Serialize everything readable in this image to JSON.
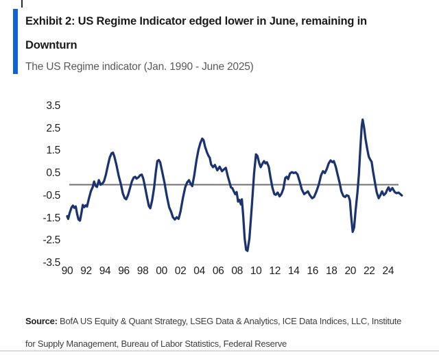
{
  "header": {
    "title_line1": "Exhibit 2: US Regime Indicator edged lower in June, remaining in",
    "title_line2": "Downturn",
    "subtitle": "The US Regime indicator (Jan. 1990 - June 2025)"
  },
  "source": {
    "label": "Source:",
    "line1": "BofA US Equity & Quant Strategy, LSEG Data & Analytics, ICE Data Indices, LLC, Institute",
    "line2": "for Supply Management, Bureau of Labor Statistics, Federal Reserve"
  },
  "colors": {
    "accent_bar": "#1164cf",
    "line": "#1b3470",
    "zero_line": "#6f6f6f",
    "tick_text": "#1c1c1c"
  },
  "chart_data": {
    "type": "line",
    "title": "Exhibit 2: US Regime Indicator edged lower in June, remaining in Downturn",
    "subtitle": "The US Regime indicator (Jan. 1990 - June 2025)",
    "series_name": "US Regime Indicator",
    "xlabel": "",
    "ylabel": "",
    "x_range": [
      1990.0,
      2025.45
    ],
    "ylim": [
      -3.5,
      3.5
    ],
    "grid": "none",
    "legend": "none",
    "zero_line": true,
    "y_ticks": [
      3.5,
      2.5,
      1.5,
      0.5,
      -0.5,
      -1.5,
      -2.5,
      -3.5
    ],
    "y_tick_labels": [
      "3.5",
      "2.5",
      "1.5",
      "0.5",
      "-0.5",
      "-1.5",
      "-2.5",
      "-3.5"
    ],
    "x_ticks": [
      1990,
      1992,
      1994,
      1996,
      1998,
      2000,
      2002,
      2004,
      2006,
      2008,
      2010,
      2012,
      2014,
      2016,
      2018,
      2020,
      2022,
      2024
    ],
    "x_tick_labels": [
      "90",
      "92",
      "94",
      "96",
      "98",
      "00",
      "02",
      "04",
      "06",
      "08",
      "10",
      "12",
      "14",
      "16",
      "18",
      "20",
      "22",
      "24"
    ],
    "points": [
      [
        1990.0,
        -1.4
      ],
      [
        1990.1,
        -1.52
      ],
      [
        1990.25,
        -1.28
      ],
      [
        1990.45,
        -1.02
      ],
      [
        1990.6,
        -0.93
      ],
      [
        1990.75,
        -1.03
      ],
      [
        1990.9,
        -0.97
      ],
      [
        1991.05,
        -1.3
      ],
      [
        1991.2,
        -1.55
      ],
      [
        1991.35,
        -1.6
      ],
      [
        1991.5,
        -1.28
      ],
      [
        1991.65,
        -0.9
      ],
      [
        1991.8,
        -1.0
      ],
      [
        1991.95,
        -0.92
      ],
      [
        1992.1,
        -0.97
      ],
      [
        1992.3,
        -0.62
      ],
      [
        1992.5,
        -0.3
      ],
      [
        1992.7,
        -0.1
      ],
      [
        1992.85,
        0.14
      ],
      [
        1993.0,
        -0.05
      ],
      [
        1993.15,
        -0.1
      ],
      [
        1993.35,
        0.2
      ],
      [
        1993.55,
        0.0
      ],
      [
        1993.75,
        0.06
      ],
      [
        1993.9,
        0.16
      ],
      [
        1994.1,
        0.45
      ],
      [
        1994.3,
        0.85
      ],
      [
        1994.5,
        1.2
      ],
      [
        1994.7,
        1.4
      ],
      [
        1994.85,
        1.43
      ],
      [
        1995.0,
        1.25
      ],
      [
        1995.2,
        0.9
      ],
      [
        1995.45,
        0.4
      ],
      [
        1995.7,
        0.0
      ],
      [
        1995.9,
        -0.4
      ],
      [
        1996.1,
        -0.6
      ],
      [
        1996.25,
        -0.65
      ],
      [
        1996.45,
        -0.45
      ],
      [
        1996.65,
        -0.15
      ],
      [
        1996.85,
        0.15
      ],
      [
        1997.05,
        0.32
      ],
      [
        1997.2,
        0.35
      ],
      [
        1997.35,
        0.27
      ],
      [
        1997.55,
        0.33
      ],
      [
        1997.75,
        0.43
      ],
      [
        1997.9,
        0.45
      ],
      [
        1998.05,
        0.28
      ],
      [
        1998.2,
        0.0
      ],
      [
        1998.45,
        -0.55
      ],
      [
        1998.65,
        -0.95
      ],
      [
        1998.8,
        -1.05
      ],
      [
        1999.0,
        -0.7
      ],
      [
        1999.2,
        -0.15
      ],
      [
        1999.4,
        0.6
      ],
      [
        1999.55,
        1.05
      ],
      [
        1999.7,
        1.1
      ],
      [
        1999.85,
        1.0
      ],
      [
        2000.05,
        0.6
      ],
      [
        2000.3,
        0.1
      ],
      [
        2000.55,
        -0.5
      ],
      [
        2000.8,
        -1.0
      ],
      [
        2001.0,
        -1.2
      ],
      [
        2001.2,
        -1.45
      ],
      [
        2001.4,
        -1.55
      ],
      [
        2001.6,
        -1.45
      ],
      [
        2001.8,
        -1.52
      ],
      [
        2002.0,
        -1.2
      ],
      [
        2002.25,
        -0.6
      ],
      [
        2002.5,
        -0.12
      ],
      [
        2002.7,
        0.1
      ],
      [
        2002.9,
        0.2
      ],
      [
        2003.1,
        0.02
      ],
      [
        2003.25,
        -0.06
      ],
      [
        2003.45,
        0.4
      ],
      [
        2003.7,
        1.1
      ],
      [
        2003.9,
        1.55
      ],
      [
        2004.1,
        1.85
      ],
      [
        2004.3,
        2.05
      ],
      [
        2004.45,
        1.98
      ],
      [
        2004.6,
        1.7
      ],
      [
        2004.8,
        1.45
      ],
      [
        2004.95,
        1.3
      ],
      [
        2005.1,
        1.2
      ],
      [
        2005.25,
        0.9
      ],
      [
        2005.45,
        0.78
      ],
      [
        2005.65,
        0.88
      ],
      [
        2005.9,
        0.64
      ],
      [
        2006.15,
        0.8
      ],
      [
        2006.4,
        0.6
      ],
      [
        2006.6,
        0.68
      ],
      [
        2006.8,
        0.75
      ],
      [
        2007.0,
        0.4
      ],
      [
        2007.2,
        0.1
      ],
      [
        2007.35,
        -0.12
      ],
      [
        2007.5,
        -0.16
      ],
      [
        2007.65,
        -0.3
      ],
      [
        2007.8,
        -0.42
      ],
      [
        2007.95,
        -0.33
      ],
      [
        2008.1,
        -0.75
      ],
      [
        2008.25,
        -0.68
      ],
      [
        2008.4,
        -0.88
      ],
      [
        2008.5,
        -0.65
      ],
      [
        2008.65,
        -1.4
      ],
      [
        2008.8,
        -2.4
      ],
      [
        2008.95,
        -2.9
      ],
      [
        2009.1,
        -2.95
      ],
      [
        2009.3,
        -2.4
      ],
      [
        2009.5,
        -1.3
      ],
      [
        2009.65,
        -0.4
      ],
      [
        2009.8,
        0.5
      ],
      [
        2010.0,
        1.35
      ],
      [
        2010.15,
        1.28
      ],
      [
        2010.35,
        0.95
      ],
      [
        2010.5,
        0.78
      ],
      [
        2010.7,
        0.95
      ],
      [
        2010.85,
        1.05
      ],
      [
        2011.0,
        0.95
      ],
      [
        2011.15,
        1.0
      ],
      [
        2011.35,
        0.8
      ],
      [
        2011.55,
        0.3
      ],
      [
        2011.75,
        -0.15
      ],
      [
        2011.95,
        -0.42
      ],
      [
        2012.1,
        -0.45
      ],
      [
        2012.3,
        -0.35
      ],
      [
        2012.5,
        -0.52
      ],
      [
        2012.7,
        -0.4
      ],
      [
        2012.9,
        -0.18
      ],
      [
        2013.1,
        0.3
      ],
      [
        2013.25,
        0.35
      ],
      [
        2013.4,
        0.25
      ],
      [
        2013.6,
        0.5
      ],
      [
        2013.8,
        0.56
      ],
      [
        2014.0,
        0.52
      ],
      [
        2014.2,
        0.55
      ],
      [
        2014.4,
        0.46
      ],
      [
        2014.6,
        0.18
      ],
      [
        2014.85,
        -0.2
      ],
      [
        2015.1,
        -0.42
      ],
      [
        2015.3,
        -0.36
      ],
      [
        2015.5,
        -0.3
      ],
      [
        2015.7,
        -0.46
      ],
      [
        2015.95,
        -0.6
      ],
      [
        2016.15,
        -0.55
      ],
      [
        2016.4,
        -0.3
      ],
      [
        2016.65,
        0.0
      ],
      [
        2016.9,
        0.42
      ],
      [
        2017.1,
        0.6
      ],
      [
        2017.3,
        0.52
      ],
      [
        2017.5,
        0.7
      ],
      [
        2017.7,
        0.95
      ],
      [
        2017.9,
        1.08
      ],
      [
        2018.1,
        1.0
      ],
      [
        2018.25,
        1.05
      ],
      [
        2018.45,
        0.8
      ],
      [
        2018.65,
        0.45
      ],
      [
        2018.85,
        0.1
      ],
      [
        2019.05,
        -0.3
      ],
      [
        2019.25,
        -0.5
      ],
      [
        2019.45,
        -0.55
      ],
      [
        2019.6,
        -0.47
      ],
      [
        2019.8,
        -0.5
      ],
      [
        2019.95,
        -0.7
      ],
      [
        2020.1,
        -1.5
      ],
      [
        2020.25,
        -2.1
      ],
      [
        2020.4,
        -1.9
      ],
      [
        2020.55,
        -1.15
      ],
      [
        2020.75,
        -0.35
      ],
      [
        2020.9,
        0.45
      ],
      [
        2021.05,
        1.55
      ],
      [
        2021.2,
        2.6
      ],
      [
        2021.3,
        2.9
      ],
      [
        2021.45,
        2.55
      ],
      [
        2021.6,
        2.05
      ],
      [
        2021.8,
        1.55
      ],
      [
        2021.95,
        1.25
      ],
      [
        2022.1,
        1.12
      ],
      [
        2022.25,
        1.02
      ],
      [
        2022.4,
        0.6
      ],
      [
        2022.6,
        0.1
      ],
      [
        2022.8,
        -0.35
      ],
      [
        2023.0,
        -0.6
      ],
      [
        2023.2,
        -0.45
      ],
      [
        2023.35,
        -0.3
      ],
      [
        2023.55,
        -0.46
      ],
      [
        2023.75,
        -0.38
      ],
      [
        2023.9,
        -0.22
      ],
      [
        2024.05,
        -0.12
      ],
      [
        2024.2,
        -0.28
      ],
      [
        2024.45,
        -0.15
      ],
      [
        2024.7,
        -0.33
      ],
      [
        2024.9,
        -0.38
      ],
      [
        2025.1,
        -0.35
      ],
      [
        2025.3,
        -0.42
      ],
      [
        2025.45,
        -0.48
      ]
    ]
  }
}
